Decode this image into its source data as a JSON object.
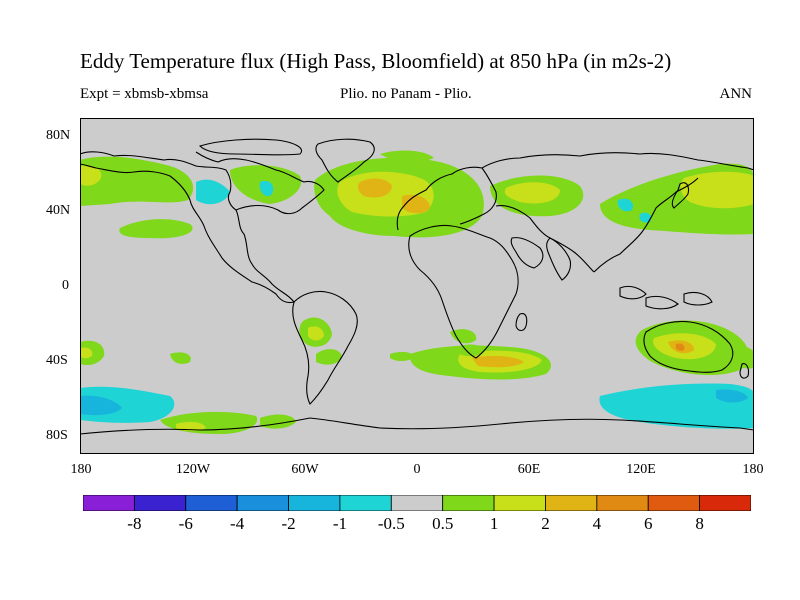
{
  "title": "Eddy Temperature flux (High Pass, Bloomfield) at 850 hPa (in m2s-2)",
  "subtitle_left": "Expt = xbmsb-xbmsa",
  "subtitle_center": "Plio. no Panam - Plio.",
  "subtitle_right": "ANN",
  "lat_ticks": [
    "80N",
    "40N",
    "0",
    "40S",
    "80S"
  ],
  "lon_ticks": [
    "180",
    "120W",
    "60W",
    "0",
    "60E",
    "120E",
    "180"
  ],
  "colorbar": {
    "labels": [
      "-8",
      "-6",
      "-4",
      "-2",
      "-1",
      "-0.5",
      "0.5",
      "1",
      "2",
      "4",
      "6",
      "8"
    ],
    "colors": [
      "#8a1fd8",
      "#3b22d0",
      "#1f5fd6",
      "#1a8fdc",
      "#17b4dc",
      "#1fd4d4",
      "#cccccc",
      "#7fd81a",
      "#c8e01a",
      "#e0b414",
      "#e08a14",
      "#e05a10",
      "#d82a0a"
    ]
  },
  "map_fills": {
    "light_green": "#7fd81a",
    "yellow_green": "#c8e01a",
    "orange": "#e0b414",
    "dark_orange": "#e08a14",
    "cyan": "#1fd4d4",
    "light_blue": "#17b4dc"
  }
}
